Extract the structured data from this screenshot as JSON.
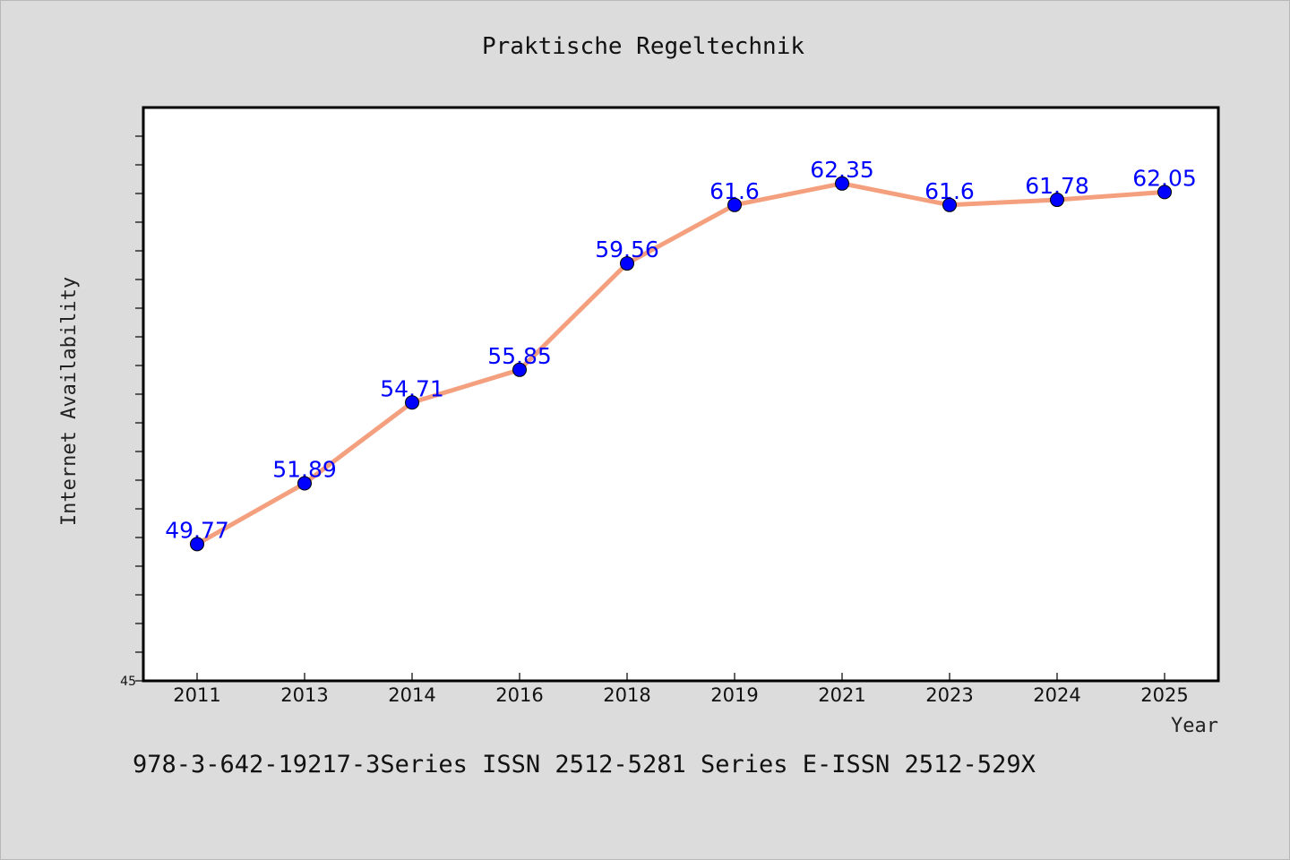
{
  "chart_data": {
    "type": "line",
    "title": "Praktische Regeltechnik",
    "xlabel": "Year",
    "ylabel": "Internet Availability",
    "categories": [
      "2011",
      "2013",
      "2014",
      "2016",
      "2018",
      "2019",
      "2021",
      "2023",
      "2024",
      "2025"
    ],
    "series": [
      {
        "values": [
          49.77,
          51.89,
          54.71,
          55.85,
          59.56,
          61.6,
          62.35,
          61.6,
          61.78,
          62.05
        ],
        "color": "#f4a07e",
        "marker_color": "#0000ff"
      }
    ],
    "data_labels": [
      "49.77",
      "51.89",
      "54.71",
      "55.85",
      "59.56",
      "61.6",
      "62.35",
      "61.6",
      "61.78",
      "62.05"
    ],
    "ylim": [
      45,
      65
    ],
    "y_tick_labels": [
      "45"
    ],
    "grid": false,
    "legend": "none"
  },
  "footer": {
    "text": "978-3-642-19217-3Series ISSN 2512-5281 Series E-ISSN 2512-529X"
  },
  "colors": {
    "background": "#dcdcdc",
    "plot_background": "#ffffff",
    "line": "#f4a07e",
    "marker": "#0000ff",
    "data_label": "#0000ff"
  }
}
